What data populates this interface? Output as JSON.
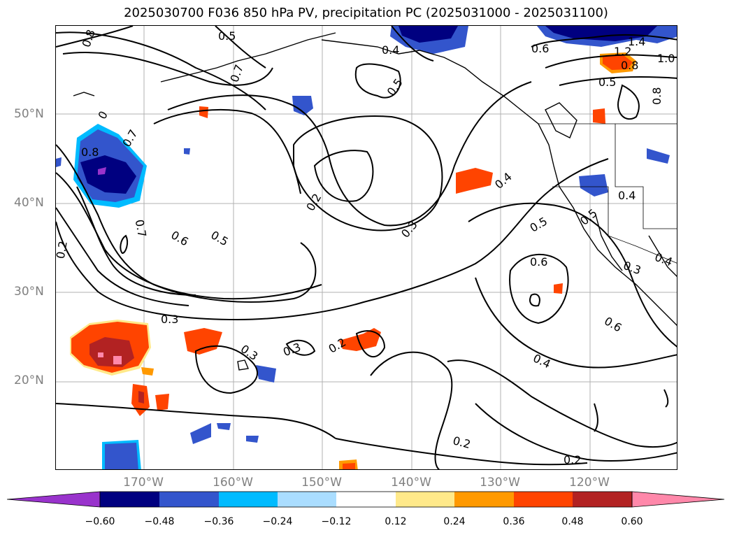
{
  "title": "2025030700 F036 850 hPa PV, precipitation PC (2025031000 - 2025031100)",
  "lat_labels": [
    "50°N",
    "40°N",
    "30°N",
    "20°N"
  ],
  "lon_labels": [
    "170°W",
    "160°W",
    "150°W",
    "140°W",
    "130°W",
    "120°W"
  ],
  "colorbar": {
    "colors": [
      "#9933cc",
      "#000080",
      "#3355cc",
      "#00bbff",
      "#aaddff",
      "#ffffff",
      "#ffe98a",
      "#ff9900",
      "#ff4400",
      "#b22222",
      "#ff88aa"
    ],
    "ticks": [
      "−0.60",
      "−0.48",
      "−0.36",
      "−0.24",
      "−0.12",
      "0.12",
      "0.24",
      "0.36",
      "0.48",
      "0.60"
    ]
  },
  "contour_labels": {
    "l08a": "0.8",
    "l05a": "0.5",
    "l07a": "0.7",
    "l04a": "0.4",
    "l05b": "0.5",
    "l06a": "0.6",
    "l14": "1.4",
    "l12": "1.2",
    "l10": "1.0",
    "l08b": "0.8",
    "l05c": "0.5",
    "l08c": "0.8",
    "l0a": "0",
    "l07b": "0.7",
    "l08d": "0.8",
    "l02a": "0.2",
    "l07c": "0.7",
    "l06b": "0.6",
    "l05d": "0.5",
    "l02b": "0.2",
    "l03a": "0.3",
    "l04b": "0.4",
    "l05e": "0.5",
    "l06c": "0.6",
    "l04c": "0.4",
    "l05f": "0.5",
    "l04d": "0.4",
    "l03b": "0.3",
    "l03c": "0.3",
    "l03d": "0.3",
    "l02c": "0.2",
    "l03e": "0.3",
    "l06d": "0.6",
    "l04e": "0.4",
    "l02d": "0.2",
    "l02e": "0.2"
  }
}
